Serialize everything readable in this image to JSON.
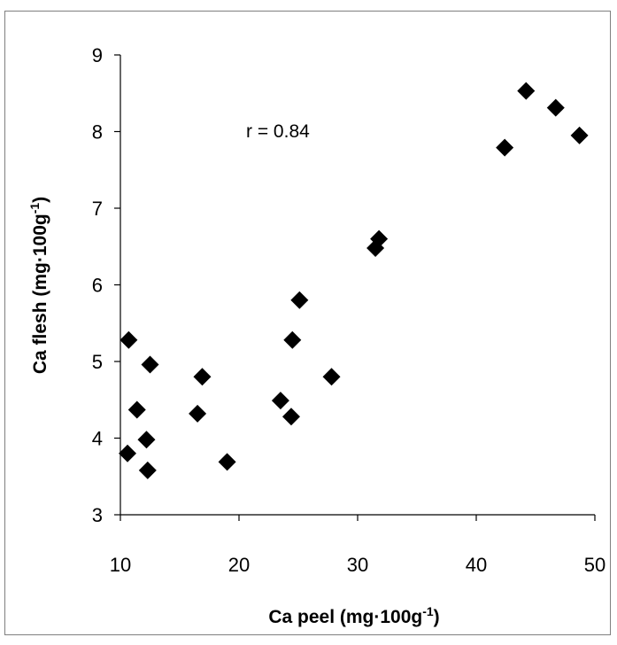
{
  "chart_data": {
    "type": "scatter",
    "xlabel": "Ca peel (mg·100g",
    "xlabel_sup": "-1",
    "xlabel_suffix": ")",
    "ylabel": "Ca flesh (mg·100g",
    "ylabel_sup": "-1",
    "ylabel_suffix": ")",
    "xlim": [
      10,
      50
    ],
    "ylim": [
      3,
      9
    ],
    "xticks": [
      10,
      20,
      30,
      40,
      50
    ],
    "yticks": [
      3,
      4,
      5,
      6,
      7,
      8,
      9
    ],
    "annotation": "r = 0.84",
    "grid": false,
    "marker": "diamond",
    "marker_color": "#000000",
    "series": [
      {
        "x": [
          10.7,
          10.6,
          11.4,
          12.2,
          12.3,
          12.5,
          16.5,
          16.9,
          19.0,
          23.5,
          24.4,
          24.5,
          25.1,
          27.8,
          31.5,
          31.8,
          42.4,
          44.2,
          46.7,
          48.7
        ],
        "y": [
          5.28,
          3.8,
          4.37,
          3.98,
          3.58,
          4.96,
          4.32,
          4.8,
          3.69,
          4.49,
          4.28,
          5.28,
          5.8,
          4.8,
          6.48,
          6.6,
          7.79,
          8.53,
          8.31,
          7.95
        ]
      }
    ]
  }
}
